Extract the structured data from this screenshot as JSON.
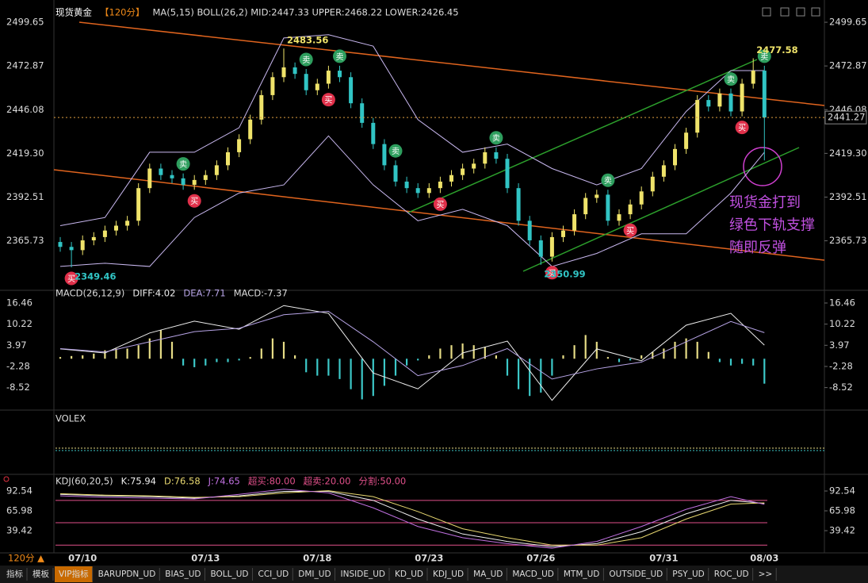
{
  "chart_data": [
    {
      "type": "candlestick",
      "title": "现货黄金",
      "period": "【120分】",
      "indicators": "MA(5,15)  BOLL(26,2)  MID:2447.33  UPPER:2468.22  LOWER:2426.45",
      "categories": [
        null,
        null,
        "07/10",
        null,
        null,
        null,
        null,
        null,
        null,
        null,
        null,
        null,
        null,
        "07/13",
        null,
        null,
        null,
        null,
        null,
        null,
        null,
        null,
        null,
        "07/18",
        null,
        null,
        null,
        null,
        null,
        null,
        null,
        null,
        null,
        "07/23",
        null,
        null,
        null,
        null,
        null,
        null,
        null,
        null,
        null,
        "07/26",
        null,
        null,
        null,
        null,
        null,
        null,
        null,
        null,
        null,
        null,
        "07/31",
        null,
        null,
        null,
        null,
        null,
        null,
        null,
        null,
        "08/03"
      ],
      "open": [
        2365,
        2362,
        2360,
        2366,
        2368,
        2372,
        2375,
        2378,
        2398,
        2410,
        2406,
        2404,
        2400,
        2403,
        2406,
        2412,
        2420,
        2428,
        2440,
        2455,
        2466,
        2472,
        2468,
        2458,
        2462,
        2470,
        2466,
        2450,
        2438,
        2425,
        2412,
        2402,
        2398,
        2395,
        2398,
        2402,
        2406,
        2410,
        2413,
        2420,
        2416,
        2398,
        2378,
        2366,
        2356,
        2368,
        2372,
        2382,
        2392,
        2394,
        2378,
        2382,
        2388,
        2396,
        2405,
        2412,
        2422,
        2432,
        2452,
        2448,
        2456,
        2445,
        2462,
        2470
      ],
      "high": [
        2368,
        2365,
        2369,
        2371,
        2375,
        2378,
        2381,
        2401,
        2413,
        2413,
        2409,
        2407,
        2406,
        2409,
        2415,
        2423,
        2431,
        2443,
        2458,
        2469,
        2483.56,
        2475,
        2471,
        2465,
        2473,
        2473,
        2469,
        2453,
        2441,
        2428,
        2415,
        2405,
        2401,
        2401,
        2405,
        2409,
        2413,
        2416,
        2423,
        2423,
        2419,
        2401,
        2381,
        2369,
        2371,
        2375,
        2385,
        2395,
        2397,
        2397,
        2385,
        2391,
        2399,
        2408,
        2415,
        2425,
        2435,
        2455,
        2455,
        2459,
        2459,
        2465,
        2477.58,
        2473
      ],
      "low": [
        2359,
        2349.46,
        2357,
        2363,
        2365,
        2369,
        2372,
        2375,
        2395,
        2403,
        2401,
        2397,
        2397,
        2400,
        2403,
        2409,
        2417,
        2425,
        2437,
        2452,
        2463,
        2465,
        2455,
        2455,
        2459,
        2463,
        2447,
        2435,
        2422,
        2409,
        2399,
        2395,
        2392,
        2392,
        2395,
        2399,
        2403,
        2407,
        2410,
        2413,
        2395,
        2375,
        2363,
        2350.99,
        2353,
        2365,
        2369,
        2379,
        2389,
        2375,
        2375,
        2379,
        2385,
        2393,
        2402,
        2409,
        2419,
        2429,
        2445,
        2445,
        2442,
        2442,
        2459,
        2415
      ],
      "close": [
        2362,
        2360,
        2366,
        2368,
        2372,
        2375,
        2378,
        2398,
        2410,
        2406,
        2404,
        2400,
        2403,
        2406,
        2412,
        2420,
        2428,
        2440,
        2455,
        2466,
        2472,
        2468,
        2458,
        2462,
        2470,
        2466,
        2450,
        2438,
        2425,
        2412,
        2402,
        2398,
        2395,
        2398,
        2402,
        2406,
        2410,
        2413,
        2420,
        2416,
        2398,
        2378,
        2366,
        2356,
        2368,
        2372,
        2382,
        2392,
        2394,
        2378,
        2382,
        2388,
        2396,
        2405,
        2412,
        2422,
        2432,
        2452,
        2448,
        2456,
        2445,
        2462,
        2470,
        2441.27
      ],
      "up_color": "#efe36a",
      "down_color": "#31c4c4",
      "signals": [
        null,
        "买",
        null,
        null,
        null,
        null,
        null,
        null,
        null,
        null,
        null,
        "卖",
        "买",
        null,
        null,
        null,
        null,
        null,
        null,
        null,
        null,
        null,
        "卖",
        null,
        "买",
        "卖",
        null,
        null,
        null,
        null,
        "卖",
        null,
        null,
        null,
        "买",
        null,
        null,
        null,
        null,
        "卖",
        null,
        null,
        null,
        null,
        "买",
        null,
        null,
        null,
        null,
        "卖",
        null,
        "买",
        null,
        null,
        null,
        null,
        null,
        null,
        null,
        null,
        "卖",
        "买",
        null,
        "卖"
      ],
      "extremes": [
        2483.56,
        2349.46,
        2350.99,
        2477.58
      ],
      "bands": {
        "x": [
          0,
          4,
          8,
          12,
          16,
          20,
          24,
          28,
          32,
          36,
          40,
          44,
          48,
          52,
          56,
          60,
          63
        ],
        "upper": [
          2375,
          2380,
          2420,
          2420,
          2435,
          2490,
          2492,
          2485,
          2440,
          2420,
          2425,
          2410,
          2400,
          2410,
          2445,
          2470,
          2470
        ],
        "lower": [
          2350,
          2352,
          2350,
          2380,
          2395,
          2400,
          2430,
          2400,
          2378,
          2385,
          2375,
          2350,
          2358,
          2370,
          2370,
          2395,
          2420
        ],
        "color": "#c9b8f0"
      },
      "annotation": [
        "现货金打到",
        "绿色下轨支撑",
        "随即反弹"
      ],
      "ylim": [
        2338.3,
        2509.4
      ],
      "yticks": [
        2499.65,
        2472.87,
        2446.08,
        {
          "value": 2419.3,
          "label": "2419.30"
        },
        2392.51,
        2365.73
      ]
    },
    {
      "type": "macd",
      "labels": [
        "MACD(26,12,9)",
        "DIFF:4.02",
        "DEA:7.71",
        "MACD:-7.37"
      ],
      "histogram": [
        0.5,
        0.8,
        1,
        1.5,
        2.5,
        3,
        3,
        4,
        6,
        8.5,
        5,
        -2,
        -2.5,
        -2,
        -1,
        -1,
        -0.5,
        0.5,
        3,
        6,
        5,
        1,
        -4,
        -5,
        -5,
        -6,
        -9,
        -12,
        -11,
        -8,
        -5,
        -2,
        -0.5,
        1,
        3,
        4,
        4.5,
        4,
        3.5,
        1,
        -5,
        -9,
        -11,
        -10,
        -5,
        1,
        4,
        7,
        5,
        0.5,
        -1,
        -0.5,
        1,
        2,
        3,
        5,
        6,
        5,
        2,
        -1,
        -2,
        -1.5,
        -2,
        -7.37
      ],
      "up_color": "#e6dc86",
      "down_color": "#3cc8c8",
      "x": [
        0,
        4,
        8,
        12,
        16,
        20,
        24,
        28,
        32,
        36,
        40,
        44,
        48,
        52,
        56,
        60,
        63
      ],
      "series": [
        {
          "color": "#eeeeee",
          "values": [
            2.9,
            1.7,
            7.6,
            11.1,
            8.7,
            15.7,
            13.4,
            -4.2,
            -8.9,
            1.7,
            5.2,
            -12.3,
            2.9,
            -0.6,
            9.9,
            13.4,
            4.02
          ]
        },
        {
          "color": "#b7a4e6",
          "values": [
            3,
            2,
            5,
            8,
            9,
            13,
            14,
            5,
            -5,
            -2,
            3,
            -6,
            -3,
            -1,
            5,
            11,
            7.71
          ]
        }
      ],
      "ylim": [
        -14.7,
        18.8
      ],
      "yticks": [
        16.46,
        10.22,
        3.97,
        -2.28,
        -8.52
      ]
    },
    {
      "type": "volex",
      "title": "VOLEX"
    },
    {
      "type": "kdj",
      "labels": [
        "KDJ(60,20,5)",
        "K:75.94",
        "D:76.58",
        "J:74.65",
        "超买:80.00",
        "超卖:20.00",
        "分割:50.00"
      ],
      "x": [
        0,
        4,
        8,
        12,
        16,
        20,
        24,
        28,
        32,
        36,
        40,
        44,
        48,
        52,
        56,
        60,
        63
      ],
      "series": [
        {
          "color": "#eeeeee",
          "values": [
            88,
            86,
            85,
            83,
            86,
            92,
            92,
            80,
            55,
            35,
            25,
            18,
            22,
            38,
            62,
            80,
            75.94
          ]
        },
        {
          "color": "#e8d870",
          "values": [
            89,
            87,
            86,
            84,
            85,
            90,
            93,
            85,
            65,
            42,
            30,
            20,
            20,
            30,
            55,
            75,
            76.58
          ]
        },
        {
          "color": "#c070e0",
          "values": [
            86,
            84,
            83,
            82,
            88,
            95,
            90,
            70,
            45,
            30,
            22,
            16,
            25,
            45,
            68,
            85,
            74.65
          ]
        }
      ],
      "levels": [
        80,
        50,
        20
      ],
      "level_color": "#e0508a",
      "ylim": [
        15,
        100
      ],
      "yticks": [
        92.54,
        65.98,
        39.42
      ]
    }
  ],
  "toolbar": {
    "period": "120分 ▲",
    "tabs": [
      "指标",
      "模板",
      "VIP指标",
      "BARUPDN_UD",
      "BIAS_UD",
      "BOLL_UD",
      "CCI_UD",
      "DMI_UD",
      "INSIDE_UD",
      "KD_UD",
      "KDJ_UD",
      "MA_UD",
      "MACD_UD",
      "MTM_UD",
      "OUTSIDE_UD",
      "PSY_UD",
      "ROC_UD",
      ">>"
    ]
  }
}
